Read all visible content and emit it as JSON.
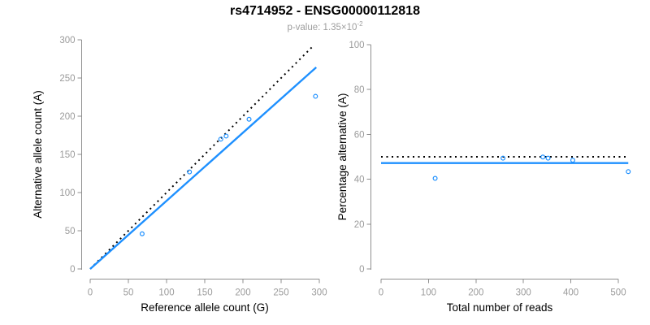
{
  "header": {
    "title": "rs4714952 - ENSG00000112818",
    "subtitle_prefix": "p-value: 1.35×10",
    "subtitle_exponent": "-2"
  },
  "colors": {
    "accent_blue": "#1E90FF",
    "dotted_black": "#000000",
    "axis_gray": "#8f8f8f",
    "tick_label_gray": "#9b9b9b",
    "axis_title_black": "#000000"
  },
  "chart_data": [
    {
      "type": "scatter",
      "title": "",
      "xlabel": "Reference allele count (G)",
      "ylabel": "Alternative allele count (A)",
      "xlim": [
        0,
        300
      ],
      "ylim": [
        0,
        300
      ],
      "xticks": [
        0,
        50,
        100,
        150,
        200,
        250,
        300
      ],
      "yticks": [
        0,
        50,
        100,
        150,
        200,
        250,
        300
      ],
      "grid": false,
      "legend": "none",
      "points": [
        [
          68,
          46
        ],
        [
          130,
          127
        ],
        [
          171,
          170
        ],
        [
          178,
          174
        ],
        [
          208,
          196
        ],
        [
          295,
          226
        ]
      ],
      "lines": [
        {
          "name": "identity-line",
          "style": "dotted",
          "color": "#000000",
          "from": [
            0,
            0
          ],
          "to": [
            293,
            293
          ]
        },
        {
          "name": "fit-line",
          "style": "solid",
          "color": "#1E90FF",
          "from": [
            0,
            0
          ],
          "to": [
            296,
            264
          ]
        }
      ]
    },
    {
      "type": "scatter",
      "title": "",
      "xlabel": "Total number of reads",
      "ylabel": "Percentage alternative (A)",
      "xlim": [
        0,
        521
      ],
      "ylim": [
        0,
        100
      ],
      "xticks": [
        0,
        100,
        200,
        300,
        400,
        500
      ],
      "yticks": [
        0,
        20,
        40,
        60,
        80,
        100
      ],
      "grid": false,
      "legend": "none",
      "points": [
        [
          114,
          40.4
        ],
        [
          257,
          49.4
        ],
        [
          341,
          49.9
        ],
        [
          352,
          49.4
        ],
        [
          404,
          48.5
        ],
        [
          521,
          43.4
        ]
      ],
      "lines": [
        {
          "name": "expected-50pct-line",
          "style": "dotted",
          "color": "#000000",
          "from": [
            0,
            50
          ],
          "to": [
            521,
            50
          ]
        },
        {
          "name": "mean-percentage-line",
          "style": "solid",
          "color": "#1E90FF",
          "from": [
            0,
            47.2
          ],
          "to": [
            521,
            47.2
          ]
        }
      ]
    }
  ]
}
